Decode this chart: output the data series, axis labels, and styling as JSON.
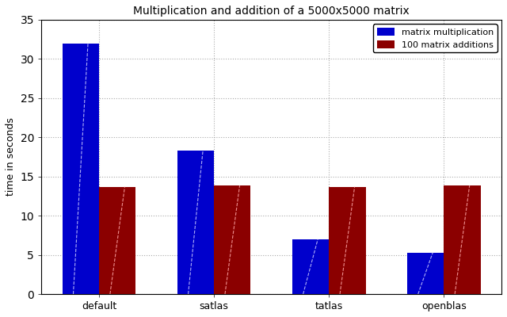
{
  "title": "Multiplication and addition of a 5000x5000 matrix",
  "ylabel": "time in seconds",
  "categories": [
    "default",
    "satlas",
    "tatlas",
    "openblas"
  ],
  "matrix_mult": [
    32,
    18.3,
    7.0,
    5.3
  ],
  "matrix_add": [
    13.7,
    13.85,
    13.7,
    13.85
  ],
  "bar_color_mult": "#0000CC",
  "bar_color_add": "#8B0000",
  "ylim": [
    0,
    35
  ],
  "yticks": [
    0,
    5,
    10,
    15,
    20,
    25,
    30,
    35
  ],
  "legend_labels": [
    "matrix multiplication",
    "100 matrix additions"
  ],
  "bar_width": 0.32,
  "background_color": "#ffffff",
  "plot_bg_color": "#ffffff",
  "grid_color": "#aaaaaa",
  "title_fontsize": 10,
  "tick_fontsize": 9,
  "ylabel_fontsize": 9
}
